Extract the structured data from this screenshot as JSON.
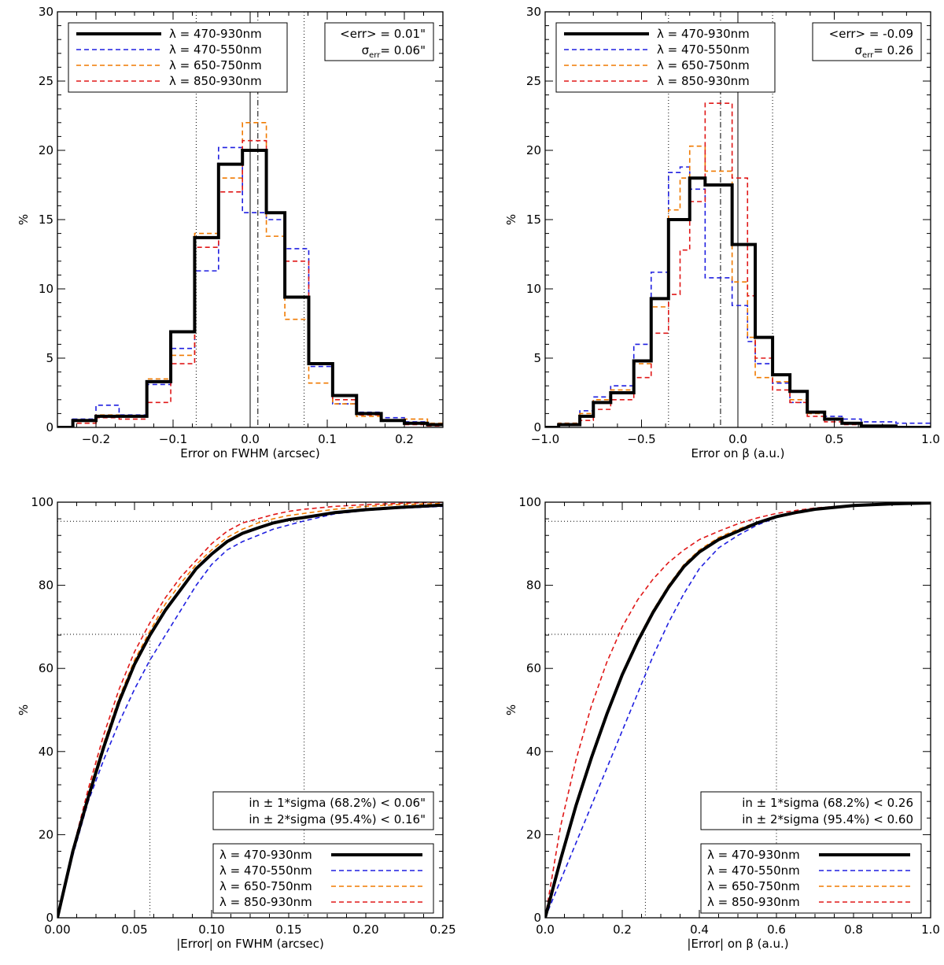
{
  "figure": {
    "colors": {
      "all": "#000000",
      "blue": "#1f1fe0",
      "orange": "#f07a00",
      "red": "#e01818"
    }
  },
  "chart_data": [
    {
      "id": "p1",
      "type": "histogram",
      "xlabel": "Error on FWHM (arcsec)",
      "ylabel": "%",
      "xlim": [
        -0.25,
        0.25
      ],
      "ylim": [
        0,
        30
      ],
      "xticks": [
        -0.2,
        -0.1,
        0.0,
        0.1,
        0.2
      ],
      "xtick_labels": [
        "−0.2",
        "−0.1",
        "0.0",
        "0.1",
        "0.2"
      ],
      "yticks": [
        0,
        5,
        10,
        15,
        20,
        25,
        30
      ],
      "ytick_labels": [
        "0",
        "5",
        "10",
        "15",
        "20",
        "25",
        "30"
      ],
      "bin_edges": [
        -0.25,
        -0.23,
        -0.2,
        -0.17,
        -0.134,
        -0.103,
        -0.072,
        -0.041,
        -0.01,
        0.021,
        0.045,
        0.076,
        0.107,
        0.138,
        0.17,
        0.2,
        0.23,
        0.25
      ],
      "series": [
        {
          "name": "λ = 470-930nm",
          "style": "all",
          "values": [
            0,
            0.5,
            0.8,
            0.8,
            3.3,
            6.9,
            13.7,
            19.0,
            20.0,
            15.5,
            9.4,
            4.6,
            2.3,
            1.0,
            0.5,
            0.3,
            0.2
          ]
        },
        {
          "name": "λ = 470-550nm",
          "style": "blue",
          "values": [
            0,
            0.6,
            1.6,
            0.9,
            3.1,
            5.7,
            11.3,
            20.2,
            15.5,
            15.0,
            12.9,
            4.4,
            1.7,
            1.1,
            0.7,
            0.4,
            0.2
          ]
        },
        {
          "name": "λ = 650-750nm",
          "style": "orange",
          "values": [
            0,
            0.3,
            0.9,
            0.8,
            3.5,
            5.2,
            14.0,
            18.0,
            22.0,
            13.8,
            7.8,
            3.2,
            1.7,
            0.8,
            0.5,
            0.6,
            0.3
          ]
        },
        {
          "name": "λ = 850-930nm",
          "style": "red",
          "values": [
            0,
            0.3,
            0.7,
            0.6,
            1.8,
            4.6,
            13.0,
            17.0,
            20.7,
            15.5,
            12.0,
            4.6,
            2.0,
            0.9,
            0.5,
            0.2,
            0.1
          ]
        }
      ],
      "vlines": [
        {
          "x": -0.07,
          "style": "dotted"
        },
        {
          "x": 0.07,
          "style": "dotted"
        },
        {
          "x": 0.0,
          "style": "solid"
        },
        {
          "x": 0.01,
          "style": "dashdot"
        }
      ],
      "stats": {
        "mean_label": "<err> = 0.01\"",
        "sigma_prefix": "σ",
        "sigma_sub": "err",
        "sigma_suffix": "= 0.06\""
      }
    },
    {
      "id": "p2",
      "type": "histogram",
      "xlabel": "Error on β (a.u.)",
      "ylabel": "%",
      "xlim": [
        -1.0,
        1.0
      ],
      "ylim": [
        0,
        30
      ],
      "xticks": [
        -1.0,
        -0.5,
        0.0,
        0.5,
        1.0
      ],
      "xtick_labels": [
        "−1.0",
        "−0.5",
        "0.0",
        "0.5",
        "1.0"
      ],
      "yticks": [
        0,
        5,
        10,
        15,
        20,
        25,
        30
      ],
      "ytick_labels": [
        "0",
        "5",
        "10",
        "15",
        "20",
        "25",
        "30"
      ],
      "bin_edges": [
        -1.0,
        -0.93,
        -0.82,
        -0.75,
        -0.66,
        -0.54,
        -0.45,
        -0.36,
        -0.3,
        -0.25,
        -0.17,
        -0.1,
        -0.03,
        0.0,
        0.05,
        0.09,
        0.18,
        0.27,
        0.36,
        0.45,
        0.54,
        0.64,
        0.82,
        1.0
      ],
      "series": [
        {
          "name": "λ = 470-930nm",
          "style": "all",
          "values": [
            0,
            0.2,
            0.8,
            1.8,
            2.5,
            4.8,
            9.3,
            15.0,
            15.0,
            18.0,
            17.5,
            17.5,
            13.2,
            13.2,
            13.2,
            6.5,
            3.8,
            2.6,
            1.1,
            0.6,
            0.3,
            0.1,
            0
          ]
        },
        {
          "name": "λ = 470-550nm",
          "style": "blue",
          "values": [
            0,
            0.3,
            1.2,
            2.2,
            3.0,
            6.0,
            11.2,
            18.4,
            18.8,
            17.2,
            10.8,
            10.8,
            8.8,
            8.8,
            6.2,
            4.6,
            3.2,
            1.8,
            1.1,
            0.8,
            0.6,
            0.4,
            0.3
          ]
        },
        {
          "name": "λ = 650-750nm",
          "style": "orange",
          "values": [
            0,
            0.3,
            1.0,
            2.0,
            2.7,
            4.6,
            8.7,
            15.7,
            18.0,
            20.3,
            18.5,
            18.5,
            10.5,
            10.5,
            6.5,
            3.6,
            3.3,
            2.0,
            1.0,
            0.6,
            0.3,
            0.1,
            0
          ]
        },
        {
          "name": "λ = 850-930nm",
          "style": "red",
          "values": [
            0,
            0.2,
            0.5,
            1.3,
            2.0,
            3.6,
            6.8,
            9.6,
            12.8,
            16.3,
            23.4,
            23.4,
            18.0,
            18.0,
            9.5,
            5.0,
            2.7,
            1.8,
            0.8,
            0.4,
            0.2,
            0.1,
            0
          ]
        }
      ],
      "vlines": [
        {
          "x": -0.36,
          "style": "dotted"
        },
        {
          "x": 0.18,
          "style": "dotted"
        },
        {
          "x": 0.0,
          "style": "solid"
        },
        {
          "x": -0.09,
          "style": "dashdot"
        }
      ],
      "stats": {
        "mean_label": "<err> = -0.09",
        "sigma_prefix": "σ",
        "sigma_sub": "err",
        "sigma_suffix": "= 0.26"
      }
    },
    {
      "id": "p3",
      "type": "line",
      "xlabel": "|Error| on FWHM (arcsec)",
      "ylabel": "%",
      "xlim": [
        0,
        0.25
      ],
      "ylim": [
        0,
        100
      ],
      "xticks": [
        0.0,
        0.05,
        0.1,
        0.15,
        0.2,
        0.25
      ],
      "xtick_labels": [
        "0.00",
        "0.05",
        "0.10",
        "0.15",
        "0.20",
        "0.25"
      ],
      "yticks": [
        0,
        20,
        40,
        60,
        80,
        100
      ],
      "ytick_labels": [
        "0",
        "20",
        "40",
        "60",
        "80",
        "100"
      ],
      "series": [
        {
          "name": "λ = 470-930nm",
          "style": "all",
          "x": [
            0,
            0.01,
            0.02,
            0.03,
            0.04,
            0.05,
            0.06,
            0.07,
            0.08,
            0.09,
            0.1,
            0.11,
            0.12,
            0.13,
            0.14,
            0.15,
            0.16,
            0.18,
            0.2,
            0.22,
            0.25
          ],
          "y": [
            0,
            16,
            29,
            41,
            52,
            61,
            68,
            74,
            79,
            84,
            87.5,
            90.5,
            92.5,
            93.8,
            95,
            95.8,
            96.3,
            97.5,
            98.2,
            98.7,
            99.3
          ]
        },
        {
          "name": "λ = 470-550nm",
          "style": "blue",
          "x": [
            0,
            0.01,
            0.02,
            0.03,
            0.04,
            0.05,
            0.06,
            0.07,
            0.08,
            0.09,
            0.1,
            0.11,
            0.12,
            0.13,
            0.14,
            0.15,
            0.16,
            0.18,
            0.2,
            0.22,
            0.25
          ],
          "y": [
            0,
            15,
            28,
            38,
            47,
            55,
            62,
            68,
            74,
            80,
            85,
            88.5,
            90.5,
            92,
            93.5,
            94.5,
            95.5,
            97.2,
            98,
            98.5,
            99
          ]
        },
        {
          "name": "λ = 650-750nm",
          "style": "orange",
          "x": [
            0,
            0.01,
            0.02,
            0.03,
            0.04,
            0.05,
            0.06,
            0.07,
            0.08,
            0.09,
            0.1,
            0.11,
            0.12,
            0.13,
            0.14,
            0.15,
            0.16,
            0.18,
            0.2,
            0.22,
            0.25
          ],
          "y": [
            0,
            16,
            30,
            42,
            53,
            62,
            69,
            75.5,
            80.5,
            85,
            88.5,
            91.5,
            93.5,
            95,
            96,
            96.8,
            97.3,
            98.3,
            99,
            99.4,
            99.7
          ]
        },
        {
          "name": "λ = 850-930nm",
          "style": "red",
          "x": [
            0,
            0.01,
            0.02,
            0.03,
            0.04,
            0.05,
            0.06,
            0.07,
            0.08,
            0.09,
            0.1,
            0.11,
            0.12,
            0.13,
            0.14,
            0.15,
            0.16,
            0.18,
            0.2,
            0.22,
            0.25
          ],
          "y": [
            0,
            16.5,
            31,
            44,
            55,
            64,
            71,
            77,
            82,
            86,
            90,
            93,
            95,
            96,
            97,
            97.8,
            98.3,
            99,
            99.4,
            99.7,
            100
          ]
        }
      ],
      "guides": [
        {
          "h": 68.2,
          "x_end": 0.06
        },
        {
          "h": 95.4,
          "x_end": 0.16
        }
      ],
      "stats": {
        "line1": "in ± 1*sigma (68.2%) < 0.06\"",
        "line2": "in ± 2*sigma (95.4%) < 0.16\""
      }
    },
    {
      "id": "p4",
      "type": "line",
      "xlabel": "|Error| on β (a.u.)",
      "ylabel": "%",
      "xlim": [
        0,
        1.0
      ],
      "ylim": [
        0,
        100
      ],
      "xticks": [
        0.0,
        0.2,
        0.4,
        0.6,
        0.8,
        1.0
      ],
      "xtick_labels": [
        "0.0",
        "0.2",
        "0.4",
        "0.6",
        "0.8",
        "1.0"
      ],
      "yticks": [
        0,
        20,
        40,
        60,
        80,
        100
      ],
      "ytick_labels": [
        "0",
        "20",
        "40",
        "60",
        "80",
        "100"
      ],
      "series": [
        {
          "name": "λ = 470-930nm",
          "style": "all",
          "x": [
            0,
            0.04,
            0.08,
            0.12,
            0.16,
            0.2,
            0.24,
            0.28,
            0.32,
            0.36,
            0.4,
            0.45,
            0.5,
            0.55,
            0.6,
            0.65,
            0.7,
            0.8,
            0.9,
            1.0
          ],
          "y": [
            0,
            14,
            27,
            38.5,
            49,
            58.5,
            66.5,
            73.5,
            79.5,
            84.5,
            88,
            91,
            93,
            95,
            96.5,
            97.5,
            98.3,
            99.2,
            99.6,
            99.8
          ]
        },
        {
          "name": "λ = 470-550nm",
          "style": "blue",
          "x": [
            0,
            0.04,
            0.08,
            0.12,
            0.16,
            0.2,
            0.24,
            0.28,
            0.32,
            0.36,
            0.4,
            0.45,
            0.5,
            0.55,
            0.6,
            0.65,
            0.7,
            0.8,
            0.9,
            1.0
          ],
          "y": [
            0,
            9,
            18,
            27,
            36,
            45,
            54,
            63,
            71,
            78,
            84,
            89,
            92,
            94.5,
            96.3,
            97.5,
            98.3,
            99.2,
            99.6,
            99.8
          ]
        },
        {
          "name": "λ = 650-750nm",
          "style": "orange",
          "x": [
            0,
            0.04,
            0.08,
            0.12,
            0.16,
            0.2,
            0.24,
            0.28,
            0.32,
            0.36,
            0.4,
            0.45,
            0.5,
            0.55,
            0.6,
            0.65,
            0.7,
            0.8,
            0.9,
            1.0
          ],
          "y": [
            0,
            14.5,
            27.5,
            39,
            49.5,
            59,
            67,
            74,
            80,
            85,
            88.5,
            91.5,
            93.5,
            95.2,
            96.6,
            97.6,
            98.4,
            99.2,
            99.6,
            99.8
          ]
        },
        {
          "name": "λ = 850-930nm",
          "style": "red",
          "x": [
            0,
            0.04,
            0.08,
            0.12,
            0.16,
            0.2,
            0.24,
            0.28,
            0.32,
            0.36,
            0.4,
            0.45,
            0.5,
            0.55,
            0.6,
            0.65,
            0.7,
            0.8,
            0.9,
            1.0
          ],
          "y": [
            0,
            22,
            38,
            51,
            61.5,
            70,
            76.5,
            81.5,
            85.5,
            88.5,
            91,
            93,
            94.8,
            96.2,
            97.3,
            98,
            98.6,
            99.3,
            99.7,
            99.9
          ]
        }
      ],
      "guides": [
        {
          "h": 68.2,
          "x_end": 0.26
        },
        {
          "h": 95.4,
          "x_end": 0.6
        }
      ],
      "stats": {
        "line1": "in ± 1*sigma (68.2%) < 0.26",
        "line2": "in ± 2*sigma (95.4%) < 0.60"
      }
    }
  ]
}
